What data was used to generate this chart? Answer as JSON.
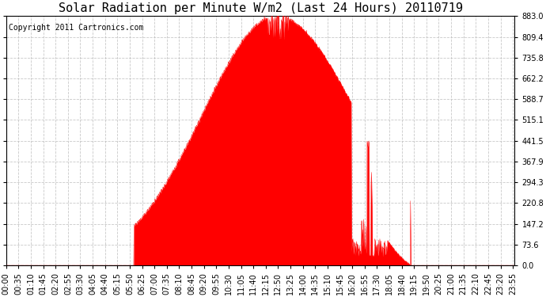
{
  "title": "Solar Radiation per Minute W/m2 (Last 24 Hours) 20110719",
  "copyright": "Copyright 2011 Cartronics.com",
  "fill_color": "#FF0000",
  "line_color": "#FF0000",
  "background_color": "#FFFFFF",
  "grid_color": "#BBBBBB",
  "dashed_line_color": "#FF0000",
  "y_ticks": [
    0.0,
    73.6,
    147.2,
    220.8,
    294.3,
    367.9,
    441.5,
    515.1,
    588.7,
    662.2,
    735.8,
    809.4,
    883.0
  ],
  "x_tick_labels": [
    "00:00",
    "00:35",
    "01:10",
    "01:45",
    "02:20",
    "02:55",
    "03:30",
    "04:05",
    "04:40",
    "05:15",
    "05:50",
    "06:25",
    "07:00",
    "07:35",
    "08:10",
    "08:45",
    "09:20",
    "09:55",
    "10:30",
    "11:05",
    "11:40",
    "12:15",
    "12:50",
    "13:25",
    "14:00",
    "14:35",
    "15:10",
    "15:45",
    "16:20",
    "16:55",
    "17:30",
    "18:05",
    "18:40",
    "19:15",
    "19:50",
    "20:25",
    "21:00",
    "21:35",
    "22:10",
    "22:45",
    "23:20",
    "23:55"
  ],
  "ylim": [
    0.0,
    883.0
  ],
  "title_fontsize": 11,
  "copyright_fontsize": 7,
  "tick_fontsize": 7
}
